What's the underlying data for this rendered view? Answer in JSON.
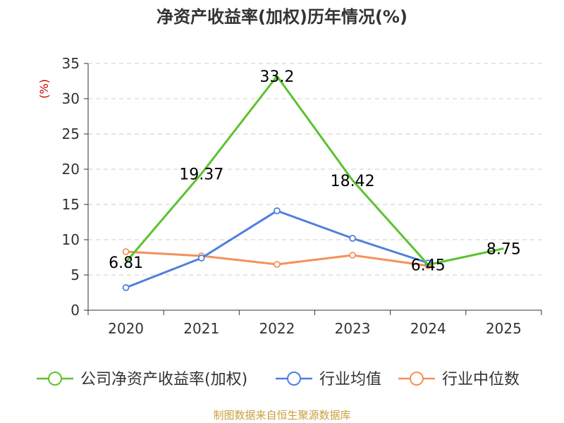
{
  "chart_data": {
    "type": "line",
    "title": "净资产收益率(加权)历年情况(%)",
    "ylabel": "(%)",
    "xlabel": "",
    "categories": [
      "2020",
      "2021",
      "2022",
      "2023",
      "2024",
      "2025"
    ],
    "ylim": [
      0,
      35
    ],
    "yticks": [
      "0",
      "5",
      "10",
      "15",
      "20",
      "25",
      "30",
      "35"
    ],
    "grid": true,
    "legend_position": "bottom",
    "series": [
      {
        "name": "公司净资产收益率(加权)",
        "color": "#5cc22f",
        "values": [
          6.81,
          19.37,
          33.2,
          18.42,
          6.45,
          8.75
        ],
        "labels": [
          "6.81",
          "19.37",
          "33.2",
          "18.42",
          "6.45",
          "8.75"
        ],
        "show_markers": false
      },
      {
        "name": "行业均值",
        "color": "#4f7fde",
        "values": [
          3.2,
          7.4,
          14.1,
          10.2,
          6.7,
          null
        ],
        "show_markers": true
      },
      {
        "name": "行业中位数",
        "color": "#f5905a",
        "values": [
          8.3,
          7.7,
          6.5,
          7.8,
          6.3,
          null
        ],
        "show_markers": true
      }
    ],
    "source": "制图数据来自恒生聚源数据库",
    "colors": {
      "axis": "#333333",
      "grid": "#cccccc",
      "ylabel": "#cc0000",
      "source": "#c9a040"
    }
  }
}
